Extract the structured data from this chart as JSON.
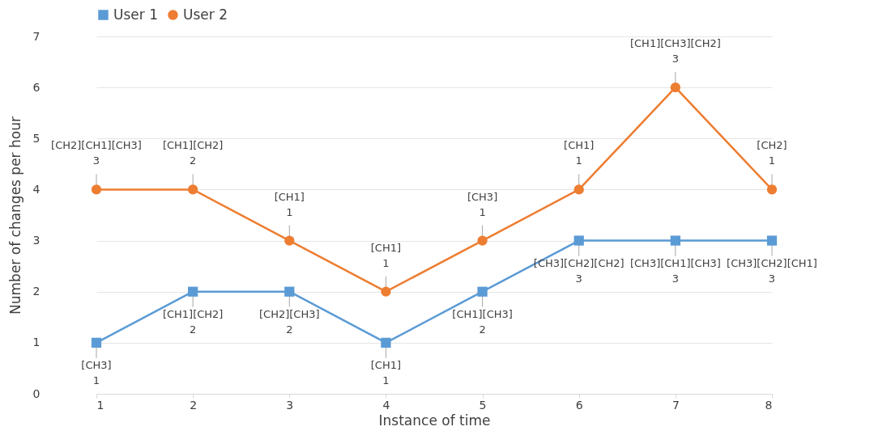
{
  "chart_data": {
    "type": "line",
    "xlabel": "Instance of time",
    "ylabel": "Number of changes per hour",
    "x": [
      1,
      2,
      3,
      4,
      5,
      6,
      7,
      8
    ],
    "series": [
      {
        "name": "User 1",
        "color": "#5b9bd5",
        "marker": "square",
        "values": [
          1,
          2,
          2,
          1,
          2,
          3,
          3,
          3
        ]
      },
      {
        "name": "User 2",
        "color": "#ed7d31",
        "marker": "circle",
        "values": [
          4,
          4,
          3,
          2,
          3,
          4,
          6,
          4
        ]
      }
    ],
    "xlim": [
      1,
      8
    ],
    "xticks": [
      1,
      2,
      3,
      4,
      5,
      6,
      7,
      8
    ],
    "ylim": [
      0,
      7
    ],
    "yticks": [
      0,
      1,
      2,
      3,
      4,
      5,
      6,
      7
    ],
    "grid": "y",
    "legend": "top",
    "line_style": "solid",
    "annotations": [
      {
        "text": "[CH3]\n1",
        "x": 1,
        "y": 1
      },
      {
        "text": "[CH1][CH2]\n2",
        "x": 2,
        "y": 2
      },
      {
        "text": "[CH2][CH3]\n2",
        "x": 3,
        "y": 2
      },
      {
        "text": "[CH1]\n1",
        "x": 4,
        "y": 1
      },
      {
        "text": "[CH1][CH3]\n2",
        "x": 5,
        "y": 2
      },
      {
        "text": "[CH3][CH2][CH2]\n3",
        "x": 6,
        "y": 3
      },
      {
        "text": "[CH3][CH1][CH3]\n3",
        "x": 7,
        "y": 3
      },
      {
        "text": "[CH3][CH2][CH1]\n3",
        "x": 8,
        "y": 3
      },
      {
        "text": "[CH2][CH1][CH3]\n3",
        "x": 1,
        "y": 4
      },
      {
        "text": "[CH1][CH2]\n2",
        "x": 2,
        "y": 4
      },
      {
        "text": "[CH1]\n1",
        "x": 3,
        "y": 3
      },
      {
        "text": "[CH1]\n1",
        "x": 4,
        "y": 2
      },
      {
        "text": "[CH3]\n1",
        "x": 5,
        "y": 3
      },
      {
        "text": "[CH1]\n1",
        "x": 6,
        "y": 4
      },
      {
        "text": "[CH1][CH3][CH2]\n3",
        "x": 7,
        "y": 6
      },
      {
        "text": "[CH2]\n1",
        "x": 8,
        "y": 4
      }
    ]
  }
}
